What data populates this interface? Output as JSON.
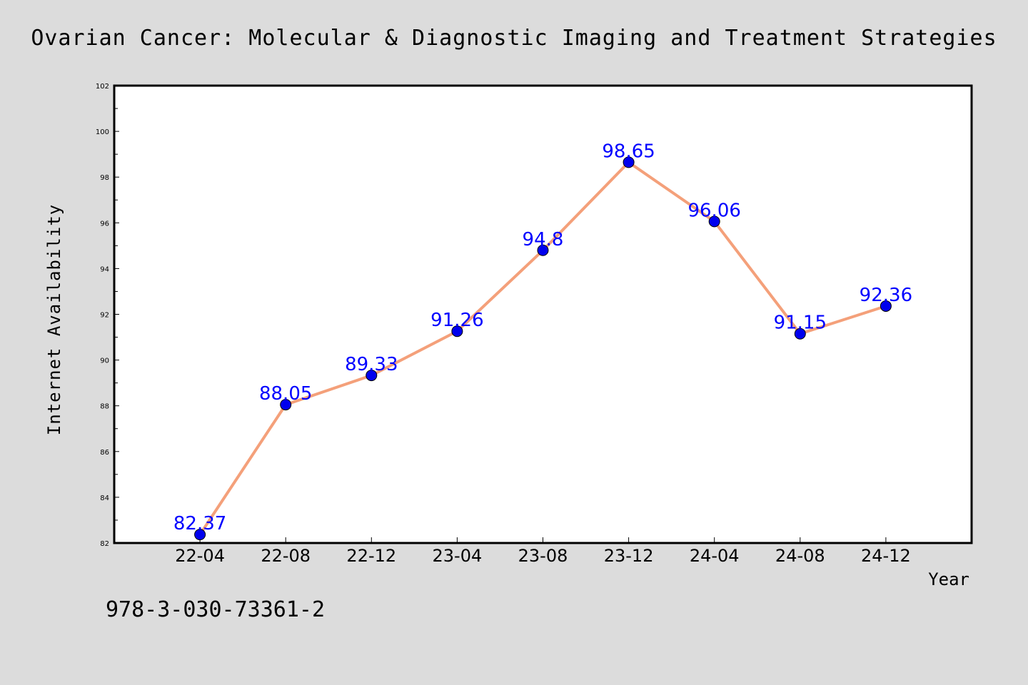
{
  "chart_data": {
    "type": "line",
    "title": "Ovarian Cancer: Molecular & Diagnostic Imaging and Treatment Strategies",
    "xlabel": "Year",
    "ylabel": "Internet Availability",
    "categories": [
      "22-04",
      "22-08",
      "22-12",
      "23-04",
      "23-08",
      "23-12",
      "24-04",
      "24-08",
      "24-12"
    ],
    "series": [
      {
        "values": [
          82.37,
          88.05,
          89.33,
          91.26,
          94.8,
          98.65,
          96.06,
          91.15,
          92.36
        ],
        "labels": [
          "82.37",
          "88.05",
          "89.33",
          "91.26",
          "94.8",
          "98.65",
          "96.06",
          "91.15",
          "92.36"
        ],
        "line_color": "#f4a07a",
        "marker_color": "#0000ee"
      }
    ],
    "ylim": [
      82,
      102
    ],
    "yticks": [
      "82",
      "84",
      "86",
      "88",
      "90",
      "92",
      "94",
      "96",
      "98",
      "100",
      "102"
    ],
    "xrange": [
      -1,
      9
    ],
    "grid": false,
    "legend": "none"
  },
  "footer": {
    "isbn": "978-3-030-73361-2"
  },
  "colors": {
    "background": "#dcdcdc",
    "plot_area": "#ffffff",
    "label_color": "#0000ff"
  }
}
